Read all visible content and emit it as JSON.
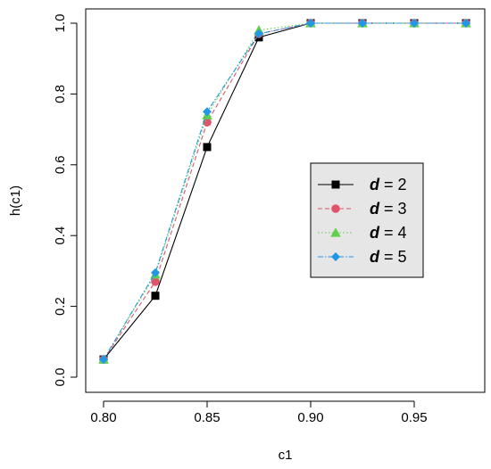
{
  "chart_data": {
    "type": "line",
    "xlabel": "c1",
    "ylabel": "h(c1)",
    "xlim": [
      0.8,
      0.975
    ],
    "ylim": [
      0.0,
      1.0
    ],
    "xticks": [
      "0.80",
      "0.85",
      "0.90",
      "0.95"
    ],
    "xtick_values": [
      0.8,
      0.85,
      0.9,
      0.95
    ],
    "yticks": [
      "0.0",
      "0.2",
      "0.4",
      "0.6",
      "0.8",
      "1.0"
    ],
    "ytick_values": [
      0.0,
      0.2,
      0.4,
      0.6,
      0.8,
      1.0
    ],
    "grid": false,
    "legend_position": "right",
    "x": [
      0.8,
      0.825,
      0.85,
      0.875,
      0.9,
      0.925,
      0.95,
      0.975
    ],
    "series": [
      {
        "name": "d = 2",
        "legend_var": "d",
        "legend_val": "2",
        "color": "#000000",
        "marker": "square",
        "dash": "",
        "values": [
          0.05,
          0.23,
          0.65,
          0.96,
          1.0,
          1.0,
          1.0,
          1.0
        ]
      },
      {
        "name": "d = 3",
        "legend_var": "d",
        "legend_val": "3",
        "color": "#DF536B",
        "marker": "circle",
        "dash": "5,3",
        "values": [
          0.05,
          0.27,
          0.72,
          0.97,
          1.0,
          1.0,
          1.0,
          1.0
        ]
      },
      {
        "name": "d = 4",
        "legend_var": "d",
        "legend_val": "4",
        "color": "#61D04F",
        "marker": "triangle",
        "dash": "1.5,2.5",
        "values": [
          0.05,
          0.29,
          0.74,
          0.98,
          1.0,
          1.0,
          1.0,
          1.0
        ]
      },
      {
        "name": "d = 5",
        "legend_var": "d",
        "legend_val": "5",
        "color": "#2297E6",
        "marker": "diamond",
        "dash": "6,2,1.5,2",
        "values": [
          0.05,
          0.295,
          0.75,
          0.97,
          1.0,
          1.0,
          1.0,
          1.0
        ]
      }
    ]
  }
}
